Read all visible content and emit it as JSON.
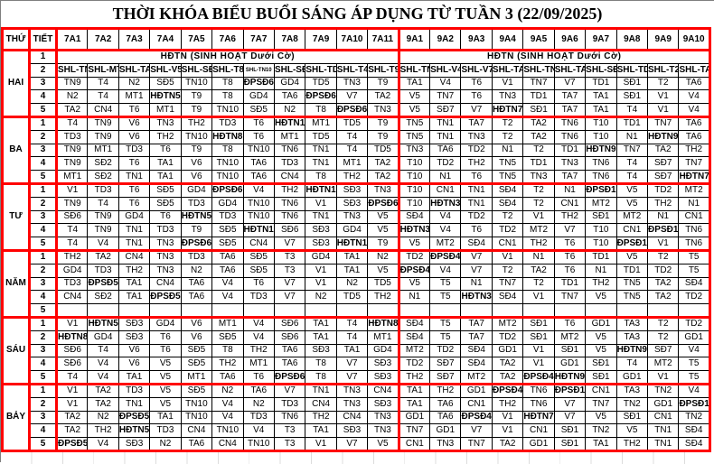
{
  "title": "THỜI KHÓA BIỂU BUỔI SÁNG ÁP DỤNG TỪ TUẦN 3 (22/09/2025)",
  "columns": {
    "day_header": "THỨ",
    "period_header": "TIẾT",
    "classes": [
      "7A1",
      "7A2",
      "7A3",
      "7A4",
      "7A5",
      "7A6",
      "7A7",
      "7A8",
      "7A9",
      "7A10",
      "7A11",
      "9A1",
      "9A2",
      "9A3",
      "9A4",
      "9A5",
      "9A6",
      "9A7",
      "9A8",
      "9A9",
      "9A10"
    ],
    "group_sizes": [
      11,
      10
    ]
  },
  "assembly_label": "HĐTN (SINH HOẠT Dưới Cờ)",
  "colors": {
    "header_blue": "#95B7DF",
    "period_peach": "#FCE0AE",
    "assembly_yellow": "#FFFF00",
    "empty_gray": "#D9D9D9",
    "border_red": "#FF0000",
    "cell_white": "#FFFFFF"
  },
  "days": [
    {
      "name": "HAI",
      "rows": [
        {
          "tiet": "1",
          "type": "merged"
        },
        {
          "tiet": "2",
          "type": "shl",
          "cells": [
            "SHL-TN9",
            "SHL-MT1",
            "SHL-TA1",
            "SHL-V5",
            "SHL-SĐ5",
            "SHL-T8",
            "SHL-TN10",
            "SHL-SĐ6",
            "SHL-TD5",
            "SHL-T4",
            "SHL-T9",
            "SHL-TN3",
            "SHL-V4",
            "SHL-V7",
            "SHL-TA2",
            "SHL-TN7",
            "SHL-TA7",
            "SHL-SĐ1",
            "SHL-TD1",
            "SHL-T2",
            "SHL-TA6"
          ]
        },
        {
          "tiet": "3",
          "type": "normal",
          "cells": [
            "TN9",
            "T4",
            "N2",
            "SĐ5",
            "TN10",
            "T8",
            "ĐPSĐ6",
            "GD4",
            "TD5",
            "TN3",
            "T9",
            "TA1",
            "V4",
            "T6",
            "V1",
            "TN7",
            "V7",
            "TD1",
            "SĐ1",
            "T2",
            "TA6"
          ]
        },
        {
          "tiet": "4",
          "type": "normal",
          "cells": [
            "N2",
            "T4",
            "MT1",
            "HĐTN5",
            "T9",
            "T8",
            "GD4",
            "TA6",
            "ĐPSĐ6",
            "V7",
            "TA2",
            "V5",
            "TN7",
            "T6",
            "TN3",
            "TD1",
            "TA7",
            "TA1",
            "SĐ1",
            "V1",
            "V4"
          ]
        },
        {
          "tiet": "5",
          "type": "normal",
          "cells": [
            "TA2",
            "CN4",
            "T6",
            "MT1",
            "T9",
            "TN10",
            "SĐ5",
            "N2",
            "T8",
            "ĐPSĐ6",
            "TN3",
            "V5",
            "SĐ7",
            "V7",
            "HĐTN7",
            "SĐ1",
            "TA7",
            "TA1",
            "T4",
            "V1",
            "V4"
          ]
        }
      ]
    },
    {
      "name": "BA",
      "rows": [
        {
          "tiet": "1",
          "type": "normal",
          "cells": [
            "T4",
            "TN9",
            "V6",
            "TN3",
            "TH2",
            "TD3",
            "T6",
            "HĐTN10",
            "MT1",
            "TD5",
            "T9",
            "TN5",
            "TN1",
            "TA7",
            "T2",
            "TA2",
            "TN6",
            "T10",
            "TD1",
            "TN7",
            "TA6"
          ]
        },
        {
          "tiet": "2",
          "type": "normal",
          "cells": [
            "TD3",
            "TN9",
            "V6",
            "TH2",
            "TN10",
            "HĐTN8",
            "T6",
            "MT1",
            "TD5",
            "T4",
            "T9",
            "TN5",
            "TN1",
            "TN3",
            "T2",
            "TA2",
            "TN6",
            "T10",
            "N1",
            "HĐTN9",
            "TA6"
          ]
        },
        {
          "tiet": "3",
          "type": "normal",
          "cells": [
            "TN9",
            "MT1",
            "TD3",
            "T6",
            "T9",
            "T8",
            "TN10",
            "TN6",
            "TN1",
            "T4",
            "TD5",
            "TN3",
            "TA6",
            "TD2",
            "N1",
            "T2",
            "TD1",
            "HĐTN9",
            "TN7",
            "TA2",
            "TH2"
          ]
        },
        {
          "tiet": "4",
          "type": "normal",
          "cells": [
            "TN9",
            "SĐ2",
            "T6",
            "TA1",
            "V6",
            "TN10",
            "TA6",
            "TD3",
            "TN1",
            "MT1",
            "TA2",
            "T10",
            "TD2",
            "TH2",
            "TN5",
            "TD1",
            "TN3",
            "TN6",
            "T4",
            "SĐ7",
            "TN7"
          ]
        },
        {
          "tiet": "5",
          "type": "normal",
          "cells": [
            "MT1",
            "SĐ2",
            "TN1",
            "TA1",
            "V6",
            "TN10",
            "TA6",
            "CN4",
            "T8",
            "TH2",
            "TA2",
            "T10",
            "N1",
            "T6",
            "TN5",
            "TN3",
            "TA7",
            "TN6",
            "T4",
            "SĐ7",
            "HĐTN7"
          ]
        }
      ]
    },
    {
      "name": "TƯ",
      "rows": [
        {
          "tiet": "1",
          "type": "normal",
          "cells": [
            "V1",
            "TD3",
            "T6",
            "SĐ5",
            "GD4",
            "ĐPSĐ6",
            "V4",
            "TH2",
            "HĐTN10",
            "SĐ3",
            "TN3",
            "T10",
            "CN1",
            "TN1",
            "SĐ4",
            "T2",
            "N1",
            "ĐPSĐ1",
            "V5",
            "TD2",
            "MT2"
          ]
        },
        {
          "tiet": "2",
          "type": "normal",
          "cells": [
            "TN9",
            "T4",
            "T6",
            "SĐ5",
            "TD3",
            "GD4",
            "TN10",
            "TN6",
            "V1",
            "SĐ3",
            "ĐPSĐ6",
            "T10",
            "HĐTN3",
            "TN1",
            "SĐ4",
            "T2",
            "CN1",
            "MT2",
            "V5",
            "TH2",
            "N1"
          ]
        },
        {
          "tiet": "3",
          "type": "normal",
          "cells": [
            "SĐ6",
            "TN9",
            "GD4",
            "T6",
            "HĐTN5",
            "TD3",
            "TN10",
            "TN6",
            "TN1",
            "TN3",
            "V5",
            "SĐ4",
            "V4",
            "TD2",
            "T2",
            "V1",
            "TH2",
            "SĐ1",
            "MT2",
            "N1",
            "CN1"
          ]
        },
        {
          "tiet": "4",
          "type": "normal",
          "cells": [
            "T4",
            "TN9",
            "TN1",
            "TD3",
            "T9",
            "SĐ5",
            "HĐTN10",
            "SĐ6",
            "SĐ3",
            "GD4",
            "V5",
            "HĐTN3",
            "V4",
            "T6",
            "TD2",
            "MT2",
            "V7",
            "T10",
            "CN1",
            "ĐPSĐ1",
            "TN6"
          ]
        },
        {
          "tiet": "5",
          "type": "normal",
          "cells": [
            "T4",
            "V4",
            "TN1",
            "TN3",
            "ĐPSĐ6",
            "SĐ5",
            "CN4",
            "V7",
            "SĐ3",
            "HĐTN10",
            "T9",
            "V5",
            "MT2",
            "SĐ4",
            "CN1",
            "TH2",
            "T6",
            "T10",
            "ĐPSĐ1",
            "V1",
            "TN6"
          ]
        }
      ]
    },
    {
      "name": "NĂM",
      "rows": [
        {
          "tiet": "1",
          "type": "normal",
          "cells": [
            "TH2",
            "TA2",
            "CN4",
            "TN3",
            "TD3",
            "TA6",
            "SĐ5",
            "T3",
            "GD4",
            "TA1",
            "N2",
            "TD2",
            "ĐPSĐ4",
            "V7",
            "V1",
            "N1",
            "T6",
            "TD1",
            "V5",
            "T2",
            "T5"
          ]
        },
        {
          "tiet": "2",
          "type": "normal",
          "cells": [
            "GD4",
            "TD3",
            "TH2",
            "TN3",
            "N2",
            "TA6",
            "SĐ5",
            "T3",
            "V1",
            "TA1",
            "V5",
            "ĐPSĐ4",
            "V4",
            "V7",
            "T2",
            "TA2",
            "T6",
            "N1",
            "TD1",
            "TD2",
            "T5"
          ]
        },
        {
          "tiet": "3",
          "type": "normal",
          "cells": [
            "TD3",
            "ĐPSĐ5",
            "TA1",
            "CN4",
            "TA6",
            "V4",
            "T6",
            "V7",
            "V1",
            "N2",
            "TD5",
            "V5",
            "T5",
            "N1",
            "TN7",
            "T2",
            "TD1",
            "TH2",
            "TN5",
            "TA2",
            "SĐ4"
          ]
        },
        {
          "tiet": "4",
          "type": "normal",
          "cells": [
            "CN4",
            "SĐ2",
            "TA1",
            "ĐPSĐ5",
            "TA6",
            "V4",
            "TD3",
            "V7",
            "N2",
            "TD5",
            "TH2",
            "N1",
            "T5",
            "HĐTN3",
            "SĐ4",
            "V1",
            "TN7",
            "V5",
            "TN5",
            "TA2",
            "TD2"
          ]
        },
        {
          "tiet": "5",
          "type": "empty"
        }
      ]
    },
    {
      "name": "SÁU",
      "rows": [
        {
          "tiet": "1",
          "type": "normal",
          "cells": [
            "V1",
            "HĐTN5",
            "SĐ3",
            "GD4",
            "V6",
            "MT1",
            "V4",
            "SĐ6",
            "TA1",
            "T4",
            "HĐTN8",
            "SĐ4",
            "T5",
            "TA7",
            "MT2",
            "SĐ1",
            "T6",
            "GD1",
            "TA3",
            "T2",
            "TD2"
          ]
        },
        {
          "tiet": "2",
          "type": "normal",
          "cells": [
            "HĐTN8",
            "GD4",
            "SĐ3",
            "T6",
            "V6",
            "SĐ5",
            "V4",
            "SĐ6",
            "TA1",
            "T4",
            "MT1",
            "SĐ4",
            "T5",
            "TA7",
            "TD2",
            "SĐ1",
            "MT2",
            "V5",
            "TA3",
            "T2",
            "GD1"
          ]
        },
        {
          "tiet": "3",
          "type": "normal",
          "cells": [
            "SĐ6",
            "T4",
            "V6",
            "T6",
            "SĐ5",
            "T8",
            "TH2",
            "TA6",
            "SĐ3",
            "TA1",
            "GD4",
            "MT2",
            "TD2",
            "SĐ4",
            "GD1",
            "V1",
            "SĐ1",
            "V5",
            "HĐTN9",
            "SĐ7",
            "V4"
          ]
        },
        {
          "tiet": "4",
          "type": "normal",
          "cells": [
            "SĐ6",
            "V4",
            "V6",
            "V5",
            "SĐ5",
            "TH2",
            "MT1",
            "TA6",
            "T8",
            "V7",
            "SĐ3",
            "TD2",
            "SĐ7",
            "SĐ4",
            "TA2",
            "V1",
            "GD1",
            "SĐ1",
            "T4",
            "MT2",
            "T5"
          ]
        },
        {
          "tiet": "5",
          "type": "normal",
          "cells": [
            "T4",
            "V4",
            "TA1",
            "V5",
            "MT1",
            "TA6",
            "T6",
            "ĐPSĐ6",
            "T8",
            "V7",
            "SĐ3",
            "TH2",
            "SĐ7",
            "MT2",
            "TA2",
            "ĐPSĐ4",
            "HĐTN9",
            "SĐ1",
            "GD1",
            "V1",
            "T5"
          ]
        }
      ]
    },
    {
      "name": "BẢY",
      "rows": [
        {
          "tiet": "1",
          "type": "normal",
          "cells": [
            "V1",
            "TA2",
            "TD3",
            "V5",
            "SĐ5",
            "N2",
            "TA6",
            "V7",
            "TN1",
            "TN3",
            "CN4",
            "TA1",
            "TH2",
            "GD1",
            "ĐPSĐ4",
            "TN6",
            "ĐPSĐ1",
            "CN1",
            "TA3",
            "TN2",
            "V4"
          ]
        },
        {
          "tiet": "2",
          "type": "normal",
          "cells": [
            "V1",
            "TA2",
            "TN1",
            "V5",
            "TN10",
            "V4",
            "N2",
            "TD3",
            "CN4",
            "TN3",
            "SĐ3",
            "TA1",
            "TA6",
            "CN1",
            "TH2",
            "TN6",
            "V7",
            "TN7",
            "TN2",
            "GD1",
            "ĐPSĐ1"
          ]
        },
        {
          "tiet": "3",
          "type": "normal",
          "cells": [
            "TA2",
            "N2",
            "ĐPSĐ5",
            "TA1",
            "TN10",
            "V4",
            "TD3",
            "TN6",
            "TH2",
            "CN4",
            "TN3",
            "GD1",
            "TA6",
            "ĐPSĐ4",
            "V1",
            "HĐTN7",
            "V7",
            "V5",
            "SĐ1",
            "CN1",
            "TN2"
          ]
        },
        {
          "tiet": "4",
          "type": "normal",
          "cells": [
            "TA2",
            "TH2",
            "HĐTN5",
            "TD3",
            "CN4",
            "TN10",
            "V4",
            "T3",
            "TA1",
            "SĐ3",
            "TN3",
            "TN7",
            "GD1",
            "V7",
            "V1",
            "CN1",
            "SĐ1",
            "TN2",
            "V5",
            "TN1",
            "SĐ4"
          ]
        },
        {
          "tiet": "5",
          "type": "normal",
          "cells": [
            "ĐPSĐ5",
            "V4",
            "SĐ3",
            "N2",
            "TA6",
            "CN4",
            "TN10",
            "T3",
            "V1",
            "V7",
            "V5",
            "CN1",
            "TN3",
            "TN7",
            "TA2",
            "GD1",
            "SĐ1",
            "TA1",
            "TH2",
            "TN1",
            "SĐ4"
          ]
        }
      ]
    }
  ]
}
